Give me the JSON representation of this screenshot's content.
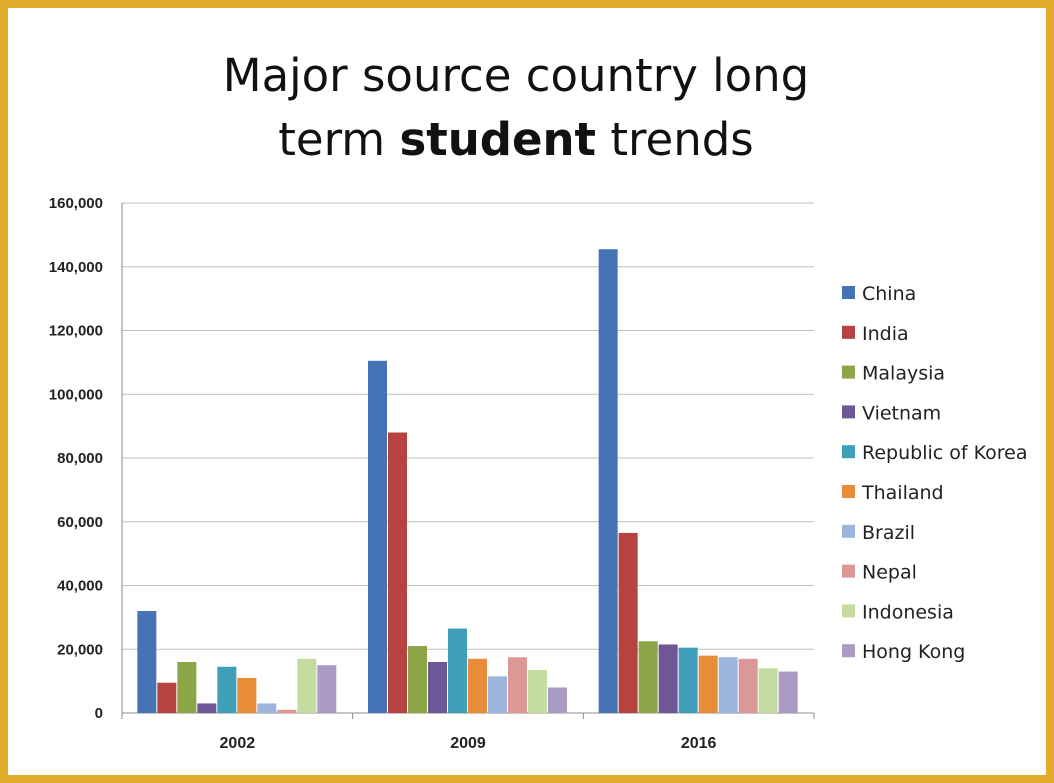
{
  "title": {
    "line1": "Major source country long",
    "line2_pre": "term ",
    "line2_bold": "student",
    "line2_post": " trends"
  },
  "colors": {
    "border": "#e3ac2a",
    "grid": "#bfbfbf"
  },
  "chart_data": {
    "type": "bar",
    "categories": [
      "2002",
      "2009",
      "2016"
    ],
    "ylim": [
      0,
      160000
    ],
    "yticks": [
      "0",
      "20,000",
      "40,000",
      "60,000",
      "80,000",
      "100,000",
      "120,000",
      "140,000",
      "160,000"
    ],
    "ytick_values": [
      0,
      20000,
      40000,
      60000,
      80000,
      100000,
      120000,
      140000,
      160000
    ],
    "grid": true,
    "legend_position": "right",
    "series": [
      {
        "name": "China",
        "color": "#4573b5",
        "values": [
          32000,
          110500,
          145500
        ]
      },
      {
        "name": "India",
        "color": "#b6433f",
        "values": [
          9500,
          88000,
          56500
        ]
      },
      {
        "name": "Malaysia",
        "color": "#8ba547",
        "values": [
          16000,
          21000,
          22500
        ]
      },
      {
        "name": "Vietnam",
        "color": "#6e5796",
        "values": [
          3000,
          16000,
          21500
        ]
      },
      {
        "name": "Republic of Korea",
        "color": "#3f9fb8",
        "values": [
          14500,
          26500,
          20500
        ]
      },
      {
        "name": "Thailand",
        "color": "#e88c3a",
        "values": [
          11000,
          17000,
          18000
        ]
      },
      {
        "name": "Brazil",
        "color": "#9bb5dc",
        "values": [
          3000,
          11500,
          17500
        ]
      },
      {
        "name": "Nepal",
        "color": "#db9897",
        "values": [
          1000,
          17500,
          17000
        ]
      },
      {
        "name": "Indonesia",
        "color": "#c4dca0",
        "values": [
          17000,
          13500,
          14000
        ]
      },
      {
        "name": "Hong Kong",
        "color": "#a99bc4",
        "values": [
          15000,
          8000,
          13000
        ]
      }
    ]
  }
}
